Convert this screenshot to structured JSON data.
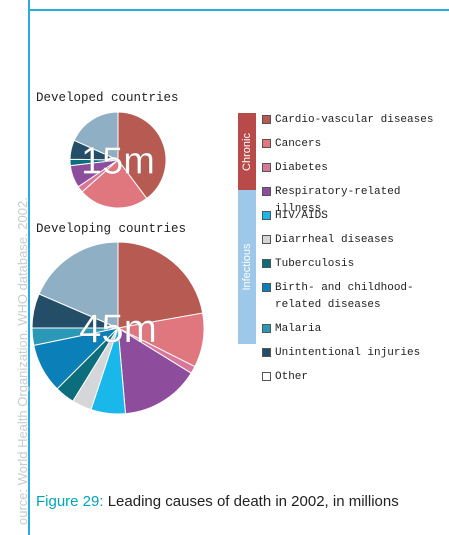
{
  "source_text": "ource: World Health Organization. WHO database. 2002.",
  "caption": {
    "figure_label": "Figure 29:",
    "text": " Leading causes of death in 2002, in millions"
  },
  "bands": {
    "chronic": "Chronic",
    "infectious": "Infectious"
  },
  "colors": {
    "chronic_band": "#b84a4a",
    "infectious_band": "#9dc8ea",
    "frame": "#29abe2"
  },
  "legend": [
    {
      "label": "Cardio-vascular diseases",
      "color": "#b75a52"
    },
    {
      "label": "Cancers",
      "color": "#e0777f"
    },
    {
      "label": "Diabetes",
      "color": "#d9779a"
    },
    {
      "label": "Respiratory-related illness",
      "color": "#8e4c9d"
    },
    {
      "label": "HIV/AIDS",
      "color": "#1ab8ea"
    },
    {
      "label": "Diarrheal diseases",
      "color": "#d4d6d9"
    },
    {
      "label": "Tuberculosis",
      "color": "#0c6e7c"
    },
    {
      "label": "Birth- and childhood-related diseases",
      "color": "#0a7fb8"
    },
    {
      "label": "Malaria",
      "color": "#2b98b6"
    },
    {
      "label": "Unintentional injuries",
      "color": "#244e68"
    },
    {
      "label": "Other",
      "color": "#ffffff"
    }
  ],
  "chart_data": [
    {
      "type": "pie",
      "title": "Developed countries",
      "center_label": "15m",
      "slices": [
        {
          "label": "Cardio-vascular diseases",
          "value": 37,
          "color": "#b75a52"
        },
        {
          "label": "Cancers",
          "value": 22,
          "color": "#e0777f"
        },
        {
          "label": "Diabetes",
          "value": 2,
          "color": "#d9779a"
        },
        {
          "label": "Respiratory-related illness",
          "value": 7,
          "color": "#8e4c9d"
        },
        {
          "label": "Tuberculosis",
          "value": 2,
          "color": "#0c6e7c"
        },
        {
          "label": "Unintentional injuries",
          "value": 6,
          "color": "#244e68"
        },
        {
          "label": "Other",
          "value": 17,
          "color": "#8fb0c4"
        }
      ]
    },
    {
      "type": "pie",
      "title": "Developing countries",
      "center_label": "45m",
      "slices": [
        {
          "label": "Cardio-vascular diseases",
          "value": 24,
          "color": "#b75a52"
        },
        {
          "label": "Cancers",
          "value": 11,
          "color": "#e0777f"
        },
        {
          "label": "Diabetes",
          "value": 1.5,
          "color": "#d9779a"
        },
        {
          "label": "Respiratory-related illness",
          "value": 16,
          "color": "#8e4c9d"
        },
        {
          "label": "HIV/AIDS",
          "value": 7,
          "color": "#1ab8ea"
        },
        {
          "label": "Diarrheal diseases",
          "value": 4,
          "color": "#d4d6d9"
        },
        {
          "label": "Tuberculosis",
          "value": 4,
          "color": "#0c6e7c"
        },
        {
          "label": "Birth- and childhood-related diseases",
          "value": 10,
          "color": "#0a7fb8"
        },
        {
          "label": "Malaria",
          "value": 3.5,
          "color": "#2b98b6"
        },
        {
          "label": "Unintentional injuries",
          "value": 7,
          "color": "#244e68"
        },
        {
          "label": "Other",
          "value": 20,
          "color": "#8fb0c4"
        }
      ]
    }
  ]
}
